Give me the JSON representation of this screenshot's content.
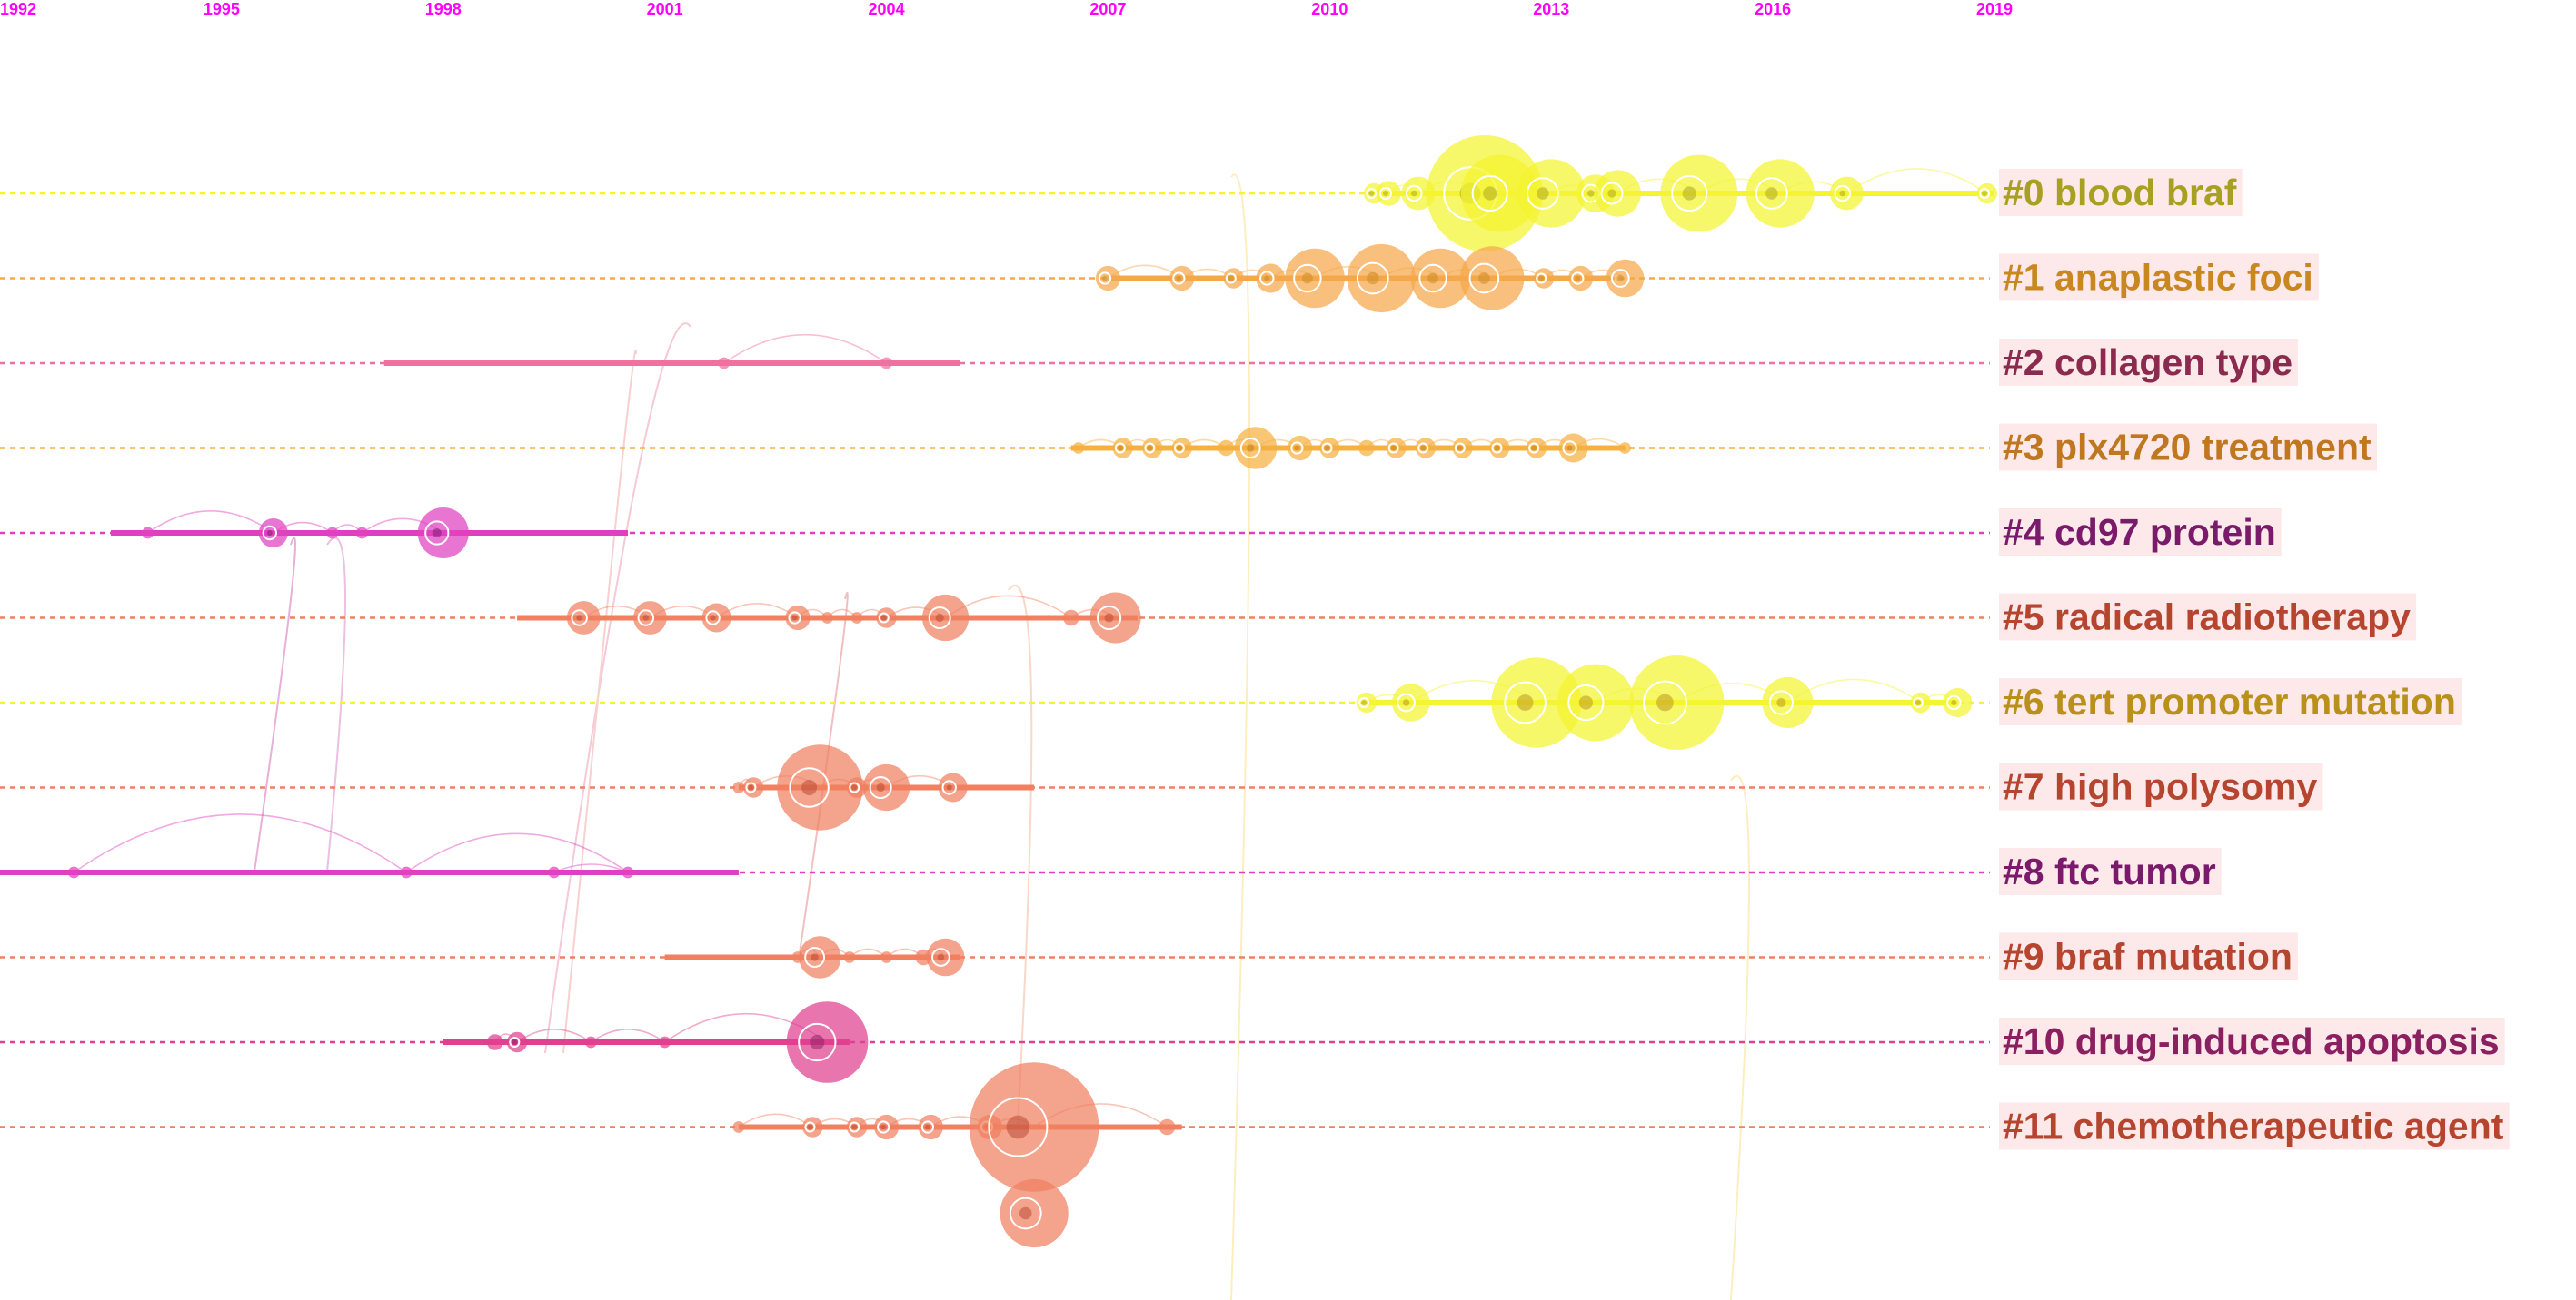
{
  "chart_data": {
    "type": "timeline",
    "x_axis": {
      "ticks": [
        "1992",
        "1995",
        "1998",
        "2001",
        "2004",
        "2007",
        "2010",
        "2013",
        "2016",
        "2019"
      ],
      "range": [
        1992,
        2019
      ]
    },
    "clusters": [
      {
        "label": "#0 blood braf",
        "color": "#f4f430",
        "label_color": "#a8a020",
        "span": [
          2010.6,
          2019
        ],
        "nodes": [
          {
            "year": 2010.6,
            "size": 3
          },
          {
            "year": 2010.8,
            "size": 4
          },
          {
            "year": 2011.2,
            "size": 6
          },
          {
            "year": 2012.1,
            "size": 25
          },
          {
            "year": 2012.3,
            "size": 16
          },
          {
            "year": 2013.0,
            "size": 14
          },
          {
            "year": 2013.6,
            "size": 7
          },
          {
            "year": 2013.9,
            "size": 9
          },
          {
            "year": 2015.0,
            "size": 16
          },
          {
            "year": 2016.1,
            "size": 14
          },
          {
            "year": 2017.0,
            "size": 6
          },
          {
            "year": 2018.9,
            "size": 3
          }
        ]
      },
      {
        "label": "#1 anaplastic foci",
        "color": "#f5a84a",
        "label_color": "#c8871f",
        "span": [
          2007,
          2013.8
        ],
        "nodes": [
          {
            "year": 2007.0,
            "size": 4
          },
          {
            "year": 2008.0,
            "size": 4
          },
          {
            "year": 2008.7,
            "size": 3
          },
          {
            "year": 2009.2,
            "size": 5
          },
          {
            "year": 2009.8,
            "size": 12
          },
          {
            "year": 2010.7,
            "size": 14
          },
          {
            "year": 2011.5,
            "size": 12
          },
          {
            "year": 2012.2,
            "size": 13
          },
          {
            "year": 2012.9,
            "size": 3
          },
          {
            "year": 2013.4,
            "size": 4
          },
          {
            "year": 2014.0,
            "size": 7
          }
        ]
      },
      {
        "label": "#2 collagen type",
        "color": "#f070a0",
        "label_color": "#8a2a4f",
        "span": [
          1997.2,
          2005
        ],
        "nodes": [
          {
            "year": 2001.8,
            "size": 1
          },
          {
            "year": 2004.0,
            "size": 1
          }
        ]
      },
      {
        "label": "#3 plx4720 treatment",
        "color": "#f5b040",
        "label_color": "#c07820",
        "span": [
          2006.5,
          2014
        ],
        "nodes": [
          {
            "year": 2006.6,
            "size": 1
          },
          {
            "year": 2007.2,
            "size": 3
          },
          {
            "year": 2007.6,
            "size": 3
          },
          {
            "year": 2008.0,
            "size": 3
          },
          {
            "year": 2008.6,
            "size": 2
          },
          {
            "year": 2009.0,
            "size": 8
          },
          {
            "year": 2009.6,
            "size": 4
          },
          {
            "year": 2010.0,
            "size": 3
          },
          {
            "year": 2010.5,
            "size": 2
          },
          {
            "year": 2010.9,
            "size": 3
          },
          {
            "year": 2011.3,
            "size": 3
          },
          {
            "year": 2011.8,
            "size": 3
          },
          {
            "year": 2012.3,
            "size": 3
          },
          {
            "year": 2012.8,
            "size": 3
          },
          {
            "year": 2013.3,
            "size": 5
          },
          {
            "year": 2014.0,
            "size": 1
          }
        ]
      },
      {
        "label": "#4 cd97 protein",
        "color": "#e040c0",
        "label_color": "#7a1a6a",
        "span": [
          1993.5,
          2000.5
        ],
        "nodes": [
          {
            "year": 1994.0,
            "size": 1
          },
          {
            "year": 1995.7,
            "size": 5
          },
          {
            "year": 1996.5,
            "size": 1
          },
          {
            "year": 1996.9,
            "size": 1
          },
          {
            "year": 1998.0,
            "size": 10
          }
        ]
      },
      {
        "label": "#5 radical radiotherapy",
        "color": "#f08060",
        "label_color": "#b5452f",
        "span": [
          1999,
          2007.4
        ],
        "nodes": [
          {
            "year": 1999.9,
            "size": 6
          },
          {
            "year": 2000.8,
            "size": 6
          },
          {
            "year": 2001.7,
            "size": 5
          },
          {
            "year": 2002.8,
            "size": 4
          },
          {
            "year": 2003.2,
            "size": 1
          },
          {
            "year": 2003.6,
            "size": 1
          },
          {
            "year": 2004.0,
            "size": 3
          },
          {
            "year": 2004.8,
            "size": 9
          },
          {
            "year": 2006.5,
            "size": 2
          },
          {
            "year": 2007.1,
            "size": 10
          }
        ]
      },
      {
        "label": "#6 tert promoter mutation",
        "color": "#f4f430",
        "label_color": "#b8901a",
        "span": [
          2010.5,
          2018.5
        ],
        "nodes": [
          {
            "year": 2010.5,
            "size": 3
          },
          {
            "year": 2011.1,
            "size": 7
          },
          {
            "year": 2012.8,
            "size": 19
          },
          {
            "year": 2013.6,
            "size": 16
          },
          {
            "year": 2014.7,
            "size": 20
          },
          {
            "year": 2016.2,
            "size": 10
          },
          {
            "year": 2018.0,
            "size": 3
          },
          {
            "year": 2018.5,
            "size": 5
          }
        ]
      },
      {
        "label": "#7 high polysomy",
        "color": "#f08060",
        "label_color": "#b5452f",
        "span": [
          2002,
          2006
        ],
        "nodes": [
          {
            "year": 2002.0,
            "size": 1
          },
          {
            "year": 2002.2,
            "size": 3
          },
          {
            "year": 2003.1,
            "size": 18
          },
          {
            "year": 2003.6,
            "size": 3
          },
          {
            "year": 2004.0,
            "size": 9
          },
          {
            "year": 2004.9,
            "size": 5
          }
        ]
      },
      {
        "label": "#8 ftc tumor",
        "color": "#e040c0",
        "label_color": "#7a1a6a",
        "span": [
          1992,
          2002
        ],
        "nodes": [
          {
            "year": 1993.0,
            "size": 1
          },
          {
            "year": 1997.5,
            "size": 1
          },
          {
            "year": 2000.5,
            "size": 1
          },
          {
            "year": 1999.5,
            "size": 1
          }
        ]
      },
      {
        "label": "#9 braf mutation",
        "color": "#f08060",
        "label_color": "#b5452f",
        "span": [
          2001,
          2005
        ],
        "nodes": [
          {
            "year": 2002.8,
            "size": 1
          },
          {
            "year": 2003.1,
            "size": 8
          },
          {
            "year": 2003.5,
            "size": 1
          },
          {
            "year": 2004.0,
            "size": 1
          },
          {
            "year": 2004.5,
            "size": 2
          },
          {
            "year": 2004.8,
            "size": 7
          }
        ]
      },
      {
        "label": "#10 drug-induced apoptosis",
        "color": "#e04090",
        "label_color": "#8a2060",
        "span": [
          1998,
          2003.5
        ],
        "nodes": [
          {
            "year": 1998.7,
            "size": 2
          },
          {
            "year": 1999.0,
            "size": 3
          },
          {
            "year": 2000.0,
            "size": 1
          },
          {
            "year": 2001.0,
            "size": 1
          },
          {
            "year": 2003.2,
            "size": 17
          }
        ]
      },
      {
        "label": "#11 chemotherapeutic agent",
        "color": "#f08060",
        "label_color": "#b5452f",
        "span": [
          2002,
          2008
        ],
        "nodes": [
          {
            "year": 2002.0,
            "size": 1
          },
          {
            "year": 2003.0,
            "size": 3
          },
          {
            "year": 2003.6,
            "size": 3
          },
          {
            "year": 2004.0,
            "size": 4
          },
          {
            "year": 2004.6,
            "size": 4
          },
          {
            "year": 2005.4,
            "size": 4
          },
          {
            "year": 2006.0,
            "size": 28
          },
          {
            "year": 2007.8,
            "size": 2
          },
          {
            "year": 2006.0,
            "size": 14,
            "offset_row": 1
          }
        ]
      }
    ]
  }
}
